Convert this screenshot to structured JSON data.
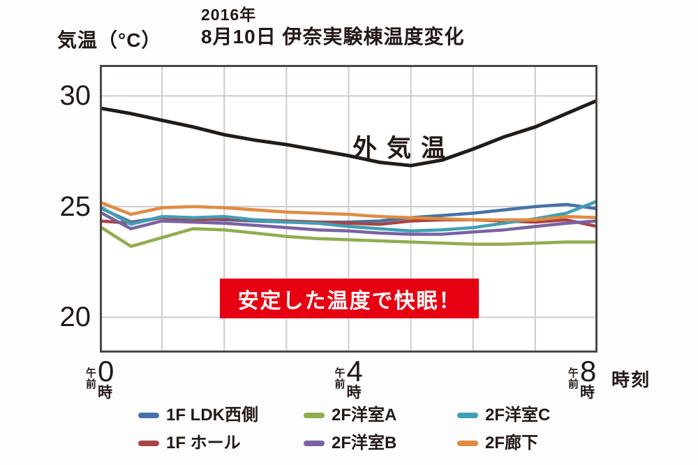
{
  "title": {
    "line1": "2016年",
    "line2": "8月10日 伊奈実験棟温度変化"
  },
  "y_axis": {
    "label": "気温（°C）"
  },
  "x_axis": {
    "tick_prefix": "午前",
    "tick_suffix": "時",
    "tick_labels": [
      "0",
      "4",
      "8"
    ],
    "unit_label": "時刻"
  },
  "annotations": {
    "outside_line_label": "外気温",
    "banner_text": "安定した温度で快眠！"
  },
  "legend": [
    {
      "label": "1F LDK西側",
      "color_key": "1f_ldk_west"
    },
    {
      "label": "1F ホール",
      "color_key": "1f_hall"
    },
    {
      "label": "2F洋室A",
      "color_key": "2f_room_a"
    },
    {
      "label": "2F洋室B",
      "color_key": "2f_room_b"
    },
    {
      "label": "2F洋室C",
      "color_key": "2f_room_c"
    },
    {
      "label": "2F廊下",
      "color_key": "2f_corridor"
    }
  ],
  "colors": {
    "outside": "#221c18",
    "1f_ldk_west": "#4472a8",
    "1f_hall": "#a94442",
    "2f_room_a": "#8fad4e",
    "2f_room_b": "#7a62a5",
    "2f_room_c": "#3f9fb5",
    "2f_corridor": "#e08b42",
    "banner_bg": "#e60012",
    "banner_text": "#ffffff",
    "grid": "#cccccc",
    "border": "#4d4742",
    "text": "#231815"
  },
  "chart_data": {
    "type": "line",
    "title": "2016年8月10日 伊奈実験棟温度変化",
    "xlabel": "時刻 (午前0時〜午前8時)",
    "ylabel": "気温（°C）",
    "x_hours": [
      0,
      0.5,
      1,
      1.5,
      2,
      2.5,
      3,
      3.5,
      4,
      4.5,
      5,
      5.5,
      6,
      6.5,
      7,
      7.5,
      8
    ],
    "xlim": [
      0,
      8
    ],
    "xticks_hours": [
      0,
      4,
      8
    ],
    "ylim": [
      18.4,
      31.4
    ],
    "yticks": [
      30,
      25,
      20
    ],
    "grid": true,
    "legend_position": "bottom",
    "series": [
      {
        "name": "外気温",
        "color_key": "outside",
        "values": [
          29.45,
          29.2,
          28.9,
          28.6,
          28.25,
          28.0,
          27.8,
          27.55,
          27.3,
          27.0,
          26.85,
          27.1,
          27.6,
          28.15,
          28.6,
          29.2,
          29.8
        ]
      },
      {
        "name": "1F LDK西側",
        "color_key": "1f_ldk_west",
        "values": [
          24.95,
          24.3,
          24.5,
          24.45,
          24.4,
          24.35,
          24.3,
          24.3,
          24.3,
          24.35,
          24.5,
          24.6,
          24.7,
          24.85,
          25.0,
          25.1,
          24.9
        ]
      },
      {
        "name": "1F ホール",
        "color_key": "1f_hall",
        "values": [
          24.35,
          24.25,
          24.5,
          24.4,
          24.45,
          24.4,
          24.35,
          24.3,
          24.25,
          24.2,
          24.35,
          24.4,
          24.4,
          24.35,
          24.3,
          24.4,
          24.1
        ]
      },
      {
        "name": "2F洋室A",
        "color_key": "2f_room_a",
        "values": [
          24.1,
          23.2,
          23.6,
          24.0,
          23.95,
          23.8,
          23.65,
          23.55,
          23.5,
          23.45,
          23.4,
          23.35,
          23.3,
          23.3,
          23.35,
          23.4,
          23.4
        ]
      },
      {
        "name": "2F洋室B",
        "color_key": "2f_room_b",
        "values": [
          24.75,
          24.0,
          24.35,
          24.3,
          24.25,
          24.15,
          24.05,
          23.95,
          23.9,
          23.8,
          23.75,
          23.75,
          23.85,
          23.95,
          24.1,
          24.25,
          24.35
        ]
      },
      {
        "name": "2F洋室C",
        "color_key": "2f_room_c",
        "values": [
          25.0,
          24.2,
          24.55,
          24.5,
          24.55,
          24.4,
          24.3,
          24.25,
          24.1,
          24.0,
          23.9,
          23.95,
          24.05,
          24.25,
          24.45,
          24.7,
          25.25
        ]
      },
      {
        "name": "2F廊下",
        "color_key": "2f_corridor",
        "values": [
          25.2,
          24.65,
          24.95,
          25.0,
          24.95,
          24.85,
          24.75,
          24.7,
          24.65,
          24.55,
          24.5,
          24.45,
          24.4,
          24.4,
          24.4,
          24.55,
          24.5
        ]
      }
    ]
  }
}
